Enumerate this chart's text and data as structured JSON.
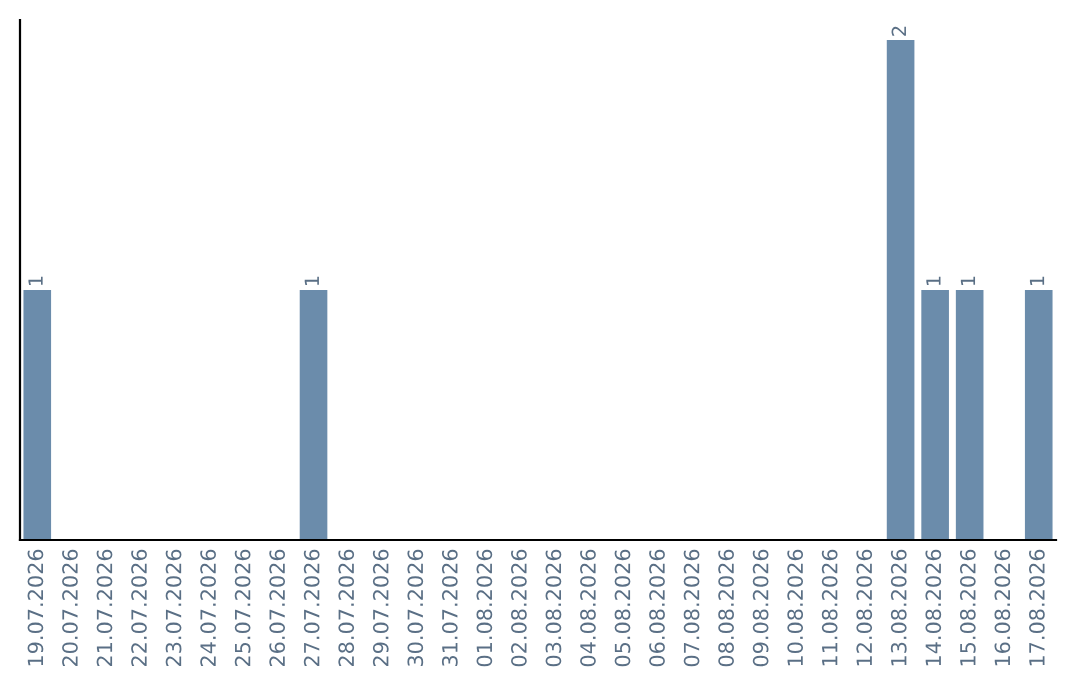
{
  "chart_data": {
    "type": "bar",
    "categories": [
      "19.07.2026",
      "20.07.2026",
      "21.07.2026",
      "22.07.2026",
      "23.07.2026",
      "24.07.2026",
      "25.07.2026",
      "26.07.2026",
      "27.07.2026",
      "28.07.2026",
      "29.07.2026",
      "30.07.2026",
      "31.07.2026",
      "01.08.2026",
      "02.08.2026",
      "03.08.2026",
      "04.08.2026",
      "05.08.2026",
      "06.08.2026",
      "07.08.2026",
      "08.08.2026",
      "09.08.2026",
      "10.08.2026",
      "11.08.2026",
      "12.08.2026",
      "13.08.2026",
      "14.08.2026",
      "15.08.2026",
      "16.08.2026",
      "17.08.2026"
    ],
    "values": [
      1,
      0,
      0,
      0,
      0,
      0,
      0,
      0,
      1,
      0,
      0,
      0,
      0,
      0,
      0,
      0,
      0,
      0,
      0,
      0,
      0,
      0,
      0,
      0,
      0,
      2,
      1,
      1,
      0,
      1
    ],
    "value_labels": [
      "1",
      null,
      null,
      null,
      null,
      null,
      null,
      null,
      "1",
      null,
      null,
      null,
      null,
      null,
      null,
      null,
      null,
      null,
      null,
      null,
      null,
      null,
      null,
      null,
      null,
      "2",
      "1",
      "1",
      null,
      "1"
    ],
    "color": "#6b8cab",
    "ylim": [
      0,
      2.08
    ],
    "tick_labels": "x",
    "grid": false,
    "legend": false
  }
}
